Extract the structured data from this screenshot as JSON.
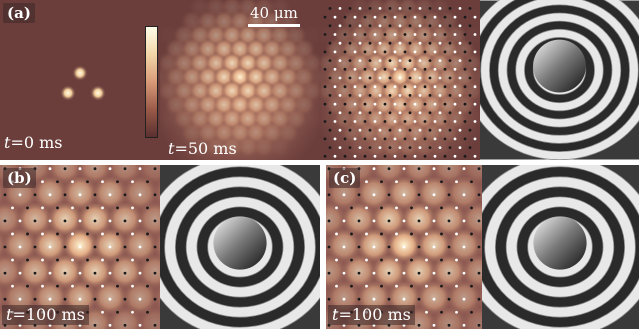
{
  "labels": {
    "a": "(a)",
    "b": "(b)",
    "c": "(c)"
  },
  "times": {
    "t0": {
      "var": "t",
      "rest": "=0 ms"
    },
    "t50": {
      "var": "t",
      "rest": "=50 ms"
    },
    "t100b": {
      "var": "t",
      "rest": "=100 ms"
    },
    "t100c": {
      "var": "t",
      "rest": "=100 ms"
    }
  },
  "scale_bar": {
    "label": "40 μm"
  },
  "colors": {
    "background": "#6b3e3c",
    "peak": "#fff7e0",
    "mid": "#d9a07c"
  }
}
